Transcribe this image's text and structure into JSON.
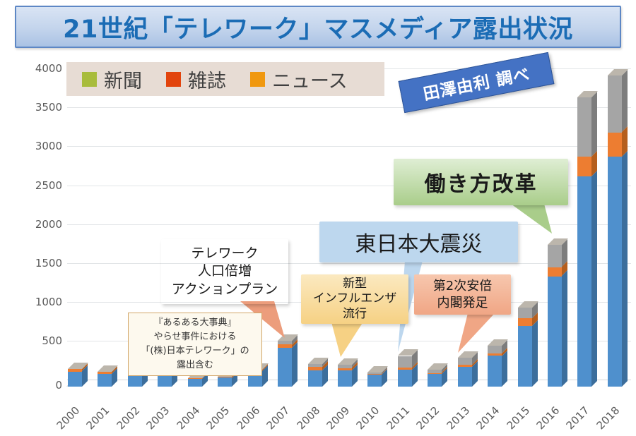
{
  "title": {
    "text": "21世紀「テレワーク」マスメディア露出状況"
  },
  "source_badge": {
    "text": "田澤由利 調べ"
  },
  "legend": [
    {
      "label": "新聞",
      "color": "#a8bc3c"
    },
    {
      "label": "雑誌",
      "color": "#e2440d"
    },
    {
      "label": "ニュース",
      "color": "#f0980f"
    }
  ],
  "annotations": {
    "note": {
      "lines": [
        "『あるある大事典』",
        "やらせ事件における",
        "「(株)日本テレワーク」の",
        "露出含む"
      ]
    },
    "plan": {
      "lines": [
        "テレワーク",
        "人口倍増",
        "アクションプラン"
      ]
    },
    "flu": {
      "lines": [
        "新型",
        "インフルエンザ",
        "流行"
      ]
    },
    "earthquake": {
      "text": "東日本大震災"
    },
    "abe": {
      "lines": [
        "第2次安倍",
        "内閣発足"
      ]
    },
    "workstyle": {
      "text": "働き方改革"
    }
  },
  "chart_data": {
    "type": "bar",
    "stacked": true,
    "title": "21世紀「テレワーク」マスメディア露出状況",
    "categories": [
      "2000",
      "2001",
      "2002",
      "2003",
      "2004",
      "2005",
      "2006",
      "2007",
      "2008",
      "2009",
      "2010",
      "2011",
      "2012",
      "2013",
      "2014",
      "2015",
      "2016",
      "2017",
      "2018"
    ],
    "series": [
      {
        "name": "blue",
        "color": "#4f90cd",
        "side_color": "#3c6e9c",
        "values": [
          195,
          165,
          180,
          135,
          100,
          115,
          200,
          500,
          210,
          205,
          150,
          215,
          160,
          250,
          395,
          780,
          1420,
          2700,
          2960
        ]
      },
      {
        "name": "orange",
        "color": "#ed7d31",
        "side_color": "#b55f1e",
        "values": [
          30,
          30,
          35,
          15,
          10,
          15,
          15,
          40,
          40,
          35,
          10,
          30,
          15,
          30,
          35,
          100,
          115,
          260,
          310
        ]
      },
      {
        "name": "gray",
        "color": "#a5a5a5",
        "side_color": "#7d7d7d",
        "values": [
          0,
          0,
          0,
          0,
          0,
          0,
          0,
          50,
          40,
          40,
          20,
          150,
          40,
          90,
          100,
          140,
          285,
          760,
          730
        ]
      }
    ],
    "totals": [
      225,
      195,
      215,
      150,
      110,
      130,
      215,
      590,
      290,
      280,
      180,
      395,
      215,
      370,
      530,
      1020,
      1820,
      3720,
      4000
    ],
    "xlabel": "",
    "ylabel": "",
    "ylim": [
      0,
      4000
    ],
    "ytick_step": 500,
    "grid": true,
    "legend_position": "top-left",
    "axis_label_color": "#595959"
  }
}
